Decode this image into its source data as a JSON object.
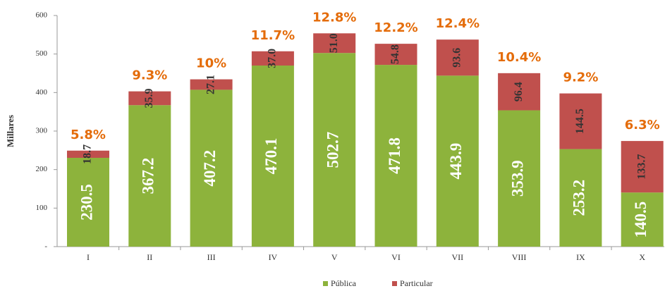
{
  "chart_data": {
    "type": "stacked_bar",
    "y_label": "Millares",
    "categories": [
      "I",
      "II",
      "III",
      "IV",
      "V",
      "VI",
      "VII",
      "VIII",
      "IX",
      "X"
    ],
    "series": [
      {
        "name": "Pública",
        "color": "#8db33c",
        "values": [
          230.5,
          367.2,
          407.2,
          470.1,
          502.7,
          471.8,
          443.9,
          353.9,
          253.2,
          140.5
        ]
      },
      {
        "name": "Particular",
        "color": "#c0504d",
        "values": [
          18.7,
          35.9,
          27.1,
          37.0,
          51.0,
          54.8,
          93.6,
          96.4,
          144.5,
          133.7
        ],
        "value_labels": [
          "18.7",
          "35.9",
          "27.1",
          "37.0",
          "51.0",
          "54.8",
          "93.6",
          "96.4",
          "144.5",
          "133.7"
        ]
      }
    ],
    "annotations": [
      "5.8%",
      "9.3%",
      "10%",
      "11.7%",
      "12.8%",
      "12.2%",
      "12.4%",
      "10.4%",
      "9.2%",
      "6.3%"
    ],
    "ylim": [
      0,
      600
    ],
    "yticks": [
      {
        "value": 0,
        "label": "-"
      },
      100,
      200,
      300,
      400,
      500,
      600
    ],
    "legend": "bottom"
  }
}
